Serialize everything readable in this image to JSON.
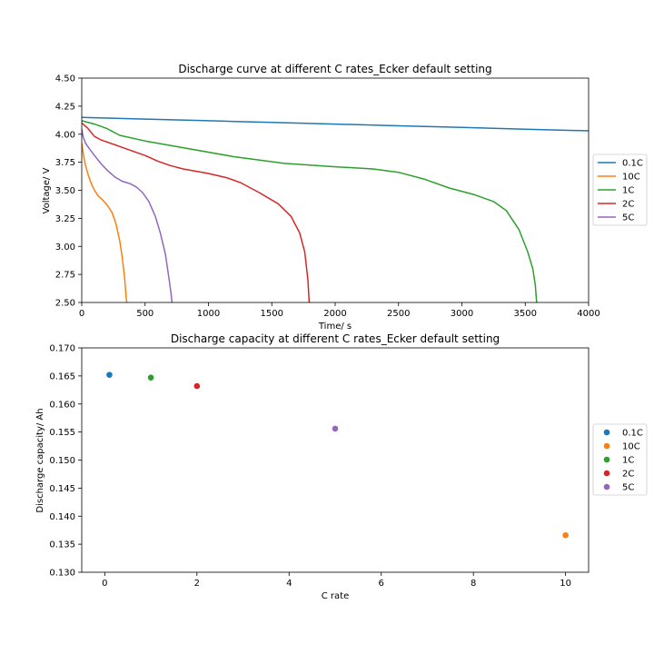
{
  "chart_data": [
    {
      "type": "line",
      "title": "Discharge curve at different C rates_Ecker default setting",
      "xlabel": "Time/ s",
      "ylabel": "Voltage/ V",
      "xlim": [
        0,
        4000
      ],
      "ylim": [
        2.5,
        4.5
      ],
      "xticks": [
        "0",
        "500",
        "1000",
        "1500",
        "2000",
        "2500",
        "3000",
        "3500",
        "4000"
      ],
      "yticks": [
        "2.50",
        "2.75",
        "3.00",
        "3.25",
        "3.50",
        "3.75",
        "4.00",
        "4.25",
        "4.50"
      ],
      "grid": false,
      "legend_position": "center-right outside",
      "series": [
        {
          "name": "0.1C",
          "color": "#1f77b4",
          "x": [
            0,
            500,
            1000,
            1500,
            2000,
            2500,
            3000,
            3500,
            4000
          ],
          "y": [
            4.15,
            4.135,
            4.12,
            4.105,
            4.09,
            4.075,
            4.06,
            4.045,
            4.03
          ]
        },
        {
          "name": "10C",
          "color": "#ff7f0e",
          "x": [
            0,
            15,
            30,
            50,
            75,
            100,
            130,
            160,
            200,
            240,
            270,
            300,
            320,
            340,
            350,
            355
          ],
          "y": [
            3.92,
            3.8,
            3.72,
            3.64,
            3.56,
            3.5,
            3.45,
            3.42,
            3.37,
            3.3,
            3.2,
            3.05,
            2.9,
            2.7,
            2.55,
            2.5
          ]
        },
        {
          "name": "1C",
          "color": "#2ca02c",
          "x": [
            0,
            100,
            200,
            300,
            500,
            800,
            1200,
            1600,
            2000,
            2300,
            2500,
            2700,
            2900,
            3100,
            3250,
            3350,
            3450,
            3520,
            3560,
            3580,
            3590
          ],
          "y": [
            4.12,
            4.09,
            4.05,
            3.99,
            3.94,
            3.88,
            3.8,
            3.74,
            3.71,
            3.69,
            3.66,
            3.6,
            3.52,
            3.46,
            3.4,
            3.32,
            3.15,
            2.95,
            2.8,
            2.65,
            2.5
          ]
        },
        {
          "name": "2C",
          "color": "#d62728",
          "x": [
            0,
            50,
            100,
            150,
            300,
            500,
            600,
            700,
            800,
            1000,
            1150,
            1250,
            1400,
            1550,
            1650,
            1720,
            1760,
            1785,
            1795
          ],
          "y": [
            4.1,
            4.05,
            3.98,
            3.95,
            3.89,
            3.81,
            3.76,
            3.72,
            3.69,
            3.65,
            3.61,
            3.57,
            3.48,
            3.38,
            3.27,
            3.12,
            2.95,
            2.7,
            2.5
          ]
        },
        {
          "name": "5C",
          "color": "#9467bd",
          "x": [
            0,
            10,
            30,
            60,
            100,
            150,
            200,
            260,
            320,
            380,
            430,
            480,
            530,
            580,
            620,
            660,
            690,
            705,
            712
          ],
          "y": [
            4.05,
            3.98,
            3.92,
            3.87,
            3.81,
            3.74,
            3.68,
            3.62,
            3.58,
            3.56,
            3.53,
            3.48,
            3.4,
            3.27,
            3.12,
            2.93,
            2.7,
            2.58,
            2.5
          ]
        }
      ]
    },
    {
      "type": "scatter",
      "title": "Discharge capacity at different C rates_Ecker default setting",
      "xlabel": "C rate",
      "ylabel": "Discharge capacity/ Ah",
      "xlim": [
        -0.5,
        10.5
      ],
      "ylim": [
        0.13,
        0.17
      ],
      "xticks": [
        "0",
        "2",
        "4",
        "6",
        "8",
        "10"
      ],
      "yticks": [
        "0.130",
        "0.135",
        "0.140",
        "0.145",
        "0.150",
        "0.155",
        "0.160",
        "0.165",
        "0.170"
      ],
      "grid": false,
      "legend_position": "center-right outside",
      "series": [
        {
          "name": "0.1C",
          "color": "#1f77b4",
          "x": [
            0.1
          ],
          "y": [
            0.1652
          ]
        },
        {
          "name": "10C",
          "color": "#ff7f0e",
          "x": [
            10
          ],
          "y": [
            0.1366
          ]
        },
        {
          "name": "1C",
          "color": "#2ca02c",
          "x": [
            1
          ],
          "y": [
            0.1647
          ]
        },
        {
          "name": "2C",
          "color": "#d62728",
          "x": [
            2
          ],
          "y": [
            0.1632
          ]
        },
        {
          "name": "5C",
          "color": "#9467bd",
          "x": [
            5
          ],
          "y": [
            0.1556
          ]
        }
      ]
    }
  ]
}
